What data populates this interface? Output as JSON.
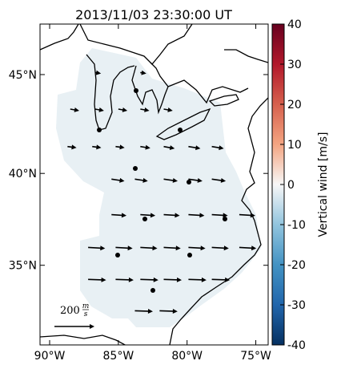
{
  "map": {
    "title": "2013/11/03 23:30:00 UT",
    "xlim": [
      -90.7,
      -74.1
    ],
    "ylim": [
      30.4,
      47.4
    ],
    "xticks": [
      {
        "value": -90,
        "label": "90°W"
      },
      {
        "value": -85,
        "label": "85°W"
      },
      {
        "value": -80,
        "label": "80°W"
      },
      {
        "value": -75,
        "label": "75°W"
      }
    ],
    "yticks": [
      {
        "value": 35,
        "label": "35°N"
      },
      {
        "value": 40,
        "label": "40°N"
      },
      {
        "value": 45,
        "label": "45°N"
      }
    ],
    "colorbar": {
      "label": "Vertical wind [m/s]",
      "lim": [
        -40,
        40
      ],
      "ticks": [
        -40,
        -30,
        -20,
        -10,
        0,
        10,
        20,
        30,
        40
      ]
    },
    "scale": {
      "value": 200,
      "unit_numerator": "m",
      "unit_denominator": "s"
    },
    "arrows": [
      {
        "lon": -86.7,
        "lat": 45.1,
        "u": 30,
        "v": -5
      },
      {
        "lon": -83.4,
        "lat": 45.1,
        "u": 30,
        "v": -5
      },
      {
        "lon": -88.5,
        "lat": 43.3,
        "u": 45,
        "v": -8
      },
      {
        "lon": -86.7,
        "lat": 43.3,
        "u": 45,
        "v": -8
      },
      {
        "lon": -85.0,
        "lat": 43.3,
        "u": 45,
        "v": -8
      },
      {
        "lon": -83.4,
        "lat": 43.3,
        "u": 45,
        "v": -8
      },
      {
        "lon": -81.7,
        "lat": 43.3,
        "u": 45,
        "v": -8
      },
      {
        "lon": -88.7,
        "lat": 41.4,
        "u": 45,
        "v": -6
      },
      {
        "lon": -86.9,
        "lat": 41.4,
        "u": 45,
        "v": -6
      },
      {
        "lon": -85.2,
        "lat": 41.4,
        "u": 45,
        "v": -6
      },
      {
        "lon": -83.4,
        "lat": 41.4,
        "u": 50,
        "v": -8
      },
      {
        "lon": -81.7,
        "lat": 41.4,
        "u": 55,
        "v": -10
      },
      {
        "lon": -79.9,
        "lat": 41.4,
        "u": 60,
        "v": -10
      },
      {
        "lon": -78.2,
        "lat": 41.4,
        "u": 60,
        "v": -10
      },
      {
        "lon": -85.5,
        "lat": 39.7,
        "u": 65,
        "v": -10
      },
      {
        "lon": -83.8,
        "lat": 39.7,
        "u": 65,
        "v": -10
      },
      {
        "lon": -81.7,
        "lat": 39.7,
        "u": 70,
        "v": -10
      },
      {
        "lon": -79.9,
        "lat": 39.7,
        "u": 70,
        "v": -10
      },
      {
        "lon": -78.2,
        "lat": 39.7,
        "u": 70,
        "v": -10
      },
      {
        "lon": -85.5,
        "lat": 37.8,
        "u": 75,
        "v": -5
      },
      {
        "lon": -83.4,
        "lat": 37.8,
        "u": 75,
        "v": -5
      },
      {
        "lon": -81.7,
        "lat": 37.8,
        "u": 80,
        "v": -5
      },
      {
        "lon": -79.9,
        "lat": 37.8,
        "u": 80,
        "v": -5
      },
      {
        "lon": -78.2,
        "lat": 37.8,
        "u": 80,
        "v": -5
      },
      {
        "lon": -76.2,
        "lat": 37.8,
        "u": 80,
        "v": -5
      },
      {
        "lon": -87.2,
        "lat": 36.0,
        "u": 85,
        "v": -5
      },
      {
        "lon": -85.2,
        "lat": 36.0,
        "u": 85,
        "v": -5
      },
      {
        "lon": -83.4,
        "lat": 36.0,
        "u": 85,
        "v": -5
      },
      {
        "lon": -81.7,
        "lat": 36.0,
        "u": 85,
        "v": -5
      },
      {
        "lon": -79.9,
        "lat": 36.0,
        "u": 85,
        "v": -5
      },
      {
        "lon": -78.2,
        "lat": 36.0,
        "u": 85,
        "v": -5
      },
      {
        "lon": -76.2,
        "lat": 36.0,
        "u": 85,
        "v": -5
      },
      {
        "lon": -87.2,
        "lat": 34.2,
        "u": 90,
        "v": -3
      },
      {
        "lon": -85.2,
        "lat": 34.2,
        "u": 90,
        "v": -3
      },
      {
        "lon": -83.4,
        "lat": 34.2,
        "u": 90,
        "v": -3
      },
      {
        "lon": -81.7,
        "lat": 34.2,
        "u": 90,
        "v": -3
      },
      {
        "lon": -79.9,
        "lat": 34.2,
        "u": 90,
        "v": -3
      },
      {
        "lon": -78.2,
        "lat": 34.2,
        "u": 90,
        "v": -3
      },
      {
        "lon": -83.8,
        "lat": 32.4,
        "u": 90,
        "v": -3
      },
      {
        "lon": -82.0,
        "lat": 32.4,
        "u": 90,
        "v": -3
      }
    ]
  }
}
